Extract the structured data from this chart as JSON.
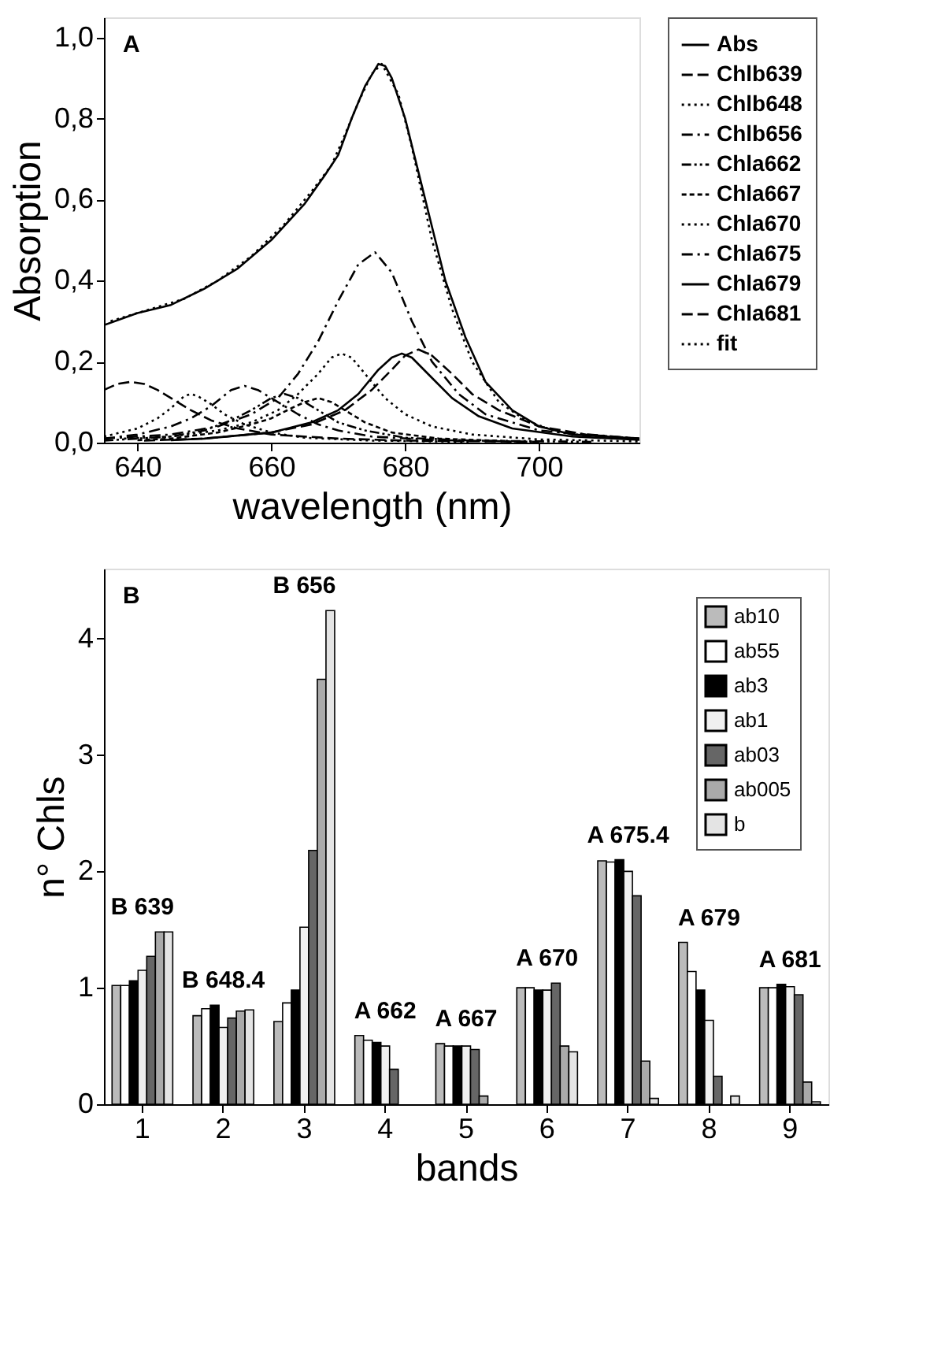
{
  "chart_data": [
    {
      "type": "line",
      "xlabel": "wavelength (nm)",
      "ylabel": "Absorption",
      "annotations": [
        "A"
      ],
      "xlim": [
        635,
        715
      ],
      "xticks": [
        640,
        660,
        680,
        700
      ],
      "ylim": [
        0,
        1.05
      ],
      "yticks": [
        {
          "value": 0,
          "label": "0,0"
        },
        {
          "value": 0.2,
          "label": "0,2"
        },
        {
          "value": 0.4,
          "label": "0,4"
        },
        {
          "value": 0.6,
          "label": "0,6"
        },
        {
          "value": 0.8,
          "label": "0,8"
        },
        {
          "value": 1.0,
          "label": "1,0"
        }
      ],
      "grid": false,
      "legend": "right",
      "marker": "none",
      "series": [
        {
          "name": "Abs",
          "color": "#000000",
          "line_style": "solid",
          "x": [
            635,
            640,
            645,
            650,
            655,
            660,
            665,
            668,
            670,
            672,
            674,
            676,
            677,
            678,
            680,
            683,
            686,
            689,
            692,
            696,
            700,
            705,
            715
          ],
          "values": [
            0.29,
            0.32,
            0.34,
            0.38,
            0.43,
            0.5,
            0.59,
            0.66,
            0.71,
            0.8,
            0.88,
            0.935,
            0.93,
            0.9,
            0.8,
            0.6,
            0.4,
            0.26,
            0.15,
            0.08,
            0.04,
            0.02,
            0.01
          ]
        },
        {
          "name": "Chlb639",
          "color": "#000000",
          "line_style": "dashed",
          "x": [
            635,
            637,
            639,
            641,
            643,
            645,
            648,
            651,
            655,
            660,
            670,
            680,
            700
          ],
          "values": [
            0.13,
            0.145,
            0.15,
            0.145,
            0.13,
            0.11,
            0.08,
            0.055,
            0.035,
            0.02,
            0.01,
            0.005,
            0.002
          ]
        },
        {
          "name": "Chlb648",
          "color": "#000000",
          "line_style": "dotted",
          "x": [
            635,
            640,
            643,
            645,
            647,
            648,
            649,
            651,
            653,
            656,
            660,
            665,
            675,
            690
          ],
          "values": [
            0.015,
            0.035,
            0.06,
            0.085,
            0.115,
            0.12,
            0.115,
            0.095,
            0.07,
            0.045,
            0.025,
            0.012,
            0.005,
            0.002
          ]
        },
        {
          "name": "Chlb656",
          "color": "#000000",
          "line_style": "dashdot",
          "x": [
            635,
            640,
            645,
            648,
            651,
            654,
            656,
            658,
            661,
            664,
            667,
            670,
            675,
            685,
            700
          ],
          "values": [
            0.01,
            0.02,
            0.04,
            0.06,
            0.09,
            0.13,
            0.14,
            0.13,
            0.1,
            0.07,
            0.045,
            0.03,
            0.015,
            0.006,
            0.002
          ]
        },
        {
          "name": "Chla662",
          "color": "#000000",
          "line_style": "dashdotdot",
          "x": [
            635,
            645,
            650,
            654,
            657,
            660,
            662,
            664,
            667,
            670,
            674,
            680,
            690,
            708
          ],
          "values": [
            0.005,
            0.015,
            0.03,
            0.055,
            0.08,
            0.11,
            0.12,
            0.11,
            0.08,
            0.05,
            0.03,
            0.012,
            0.005,
            0.002
          ]
        },
        {
          "name": "Chla667",
          "color": "#000000",
          "line_style": "shortdash",
          "x": [
            640,
            645,
            652,
            657,
            660,
            663,
            665,
            667,
            669,
            671,
            674,
            678,
            685,
            695
          ],
          "values": [
            0.006,
            0.01,
            0.025,
            0.045,
            0.06,
            0.085,
            0.1,
            0.11,
            0.1,
            0.08,
            0.05,
            0.025,
            0.01,
            0.004
          ]
        },
        {
          "name": "Chla670",
          "color": "#000000",
          "line_style": "dotted",
          "x": [
            638,
            645,
            652,
            657,
            661,
            664,
            667,
            669,
            670.5,
            672,
            674,
            677,
            680,
            684,
            690,
            700,
            715
          ],
          "values": [
            0.01,
            0.015,
            0.03,
            0.05,
            0.08,
            0.12,
            0.17,
            0.21,
            0.22,
            0.21,
            0.17,
            0.11,
            0.07,
            0.04,
            0.02,
            0.008,
            0.003
          ]
        },
        {
          "name": "Chla675",
          "color": "#000000",
          "line_style": "dashdot",
          "x": [
            635,
            645,
            652,
            657,
            661,
            664,
            667,
            670,
            673,
            675.5,
            678,
            681,
            684,
            688,
            692,
            700,
            715
          ],
          "values": [
            0.01,
            0.02,
            0.04,
            0.07,
            0.11,
            0.17,
            0.25,
            0.35,
            0.44,
            0.47,
            0.42,
            0.3,
            0.2,
            0.12,
            0.07,
            0.03,
            0.01
          ]
        },
        {
          "name": "Chla679",
          "color": "#000000",
          "line_style": "solid",
          "x": [
            645,
            650,
            660,
            666,
            670,
            673,
            676,
            678,
            679.5,
            681,
            684,
            687,
            691,
            696,
            705,
            715
          ],
          "values": [
            0.006,
            0.01,
            0.025,
            0.05,
            0.08,
            0.12,
            0.18,
            0.21,
            0.22,
            0.21,
            0.16,
            0.11,
            0.065,
            0.035,
            0.015,
            0.007
          ]
        },
        {
          "name": "Chla681",
          "color": "#000000",
          "line_style": "dashed",
          "x": [
            641,
            650,
            660,
            666,
            671,
            675,
            678,
            680,
            682,
            684,
            687,
            690,
            694,
            700,
            707,
            715
          ],
          "values": [
            0.005,
            0.01,
            0.025,
            0.045,
            0.08,
            0.13,
            0.18,
            0.215,
            0.23,
            0.215,
            0.17,
            0.12,
            0.08,
            0.04,
            0.02,
            0.01
          ]
        },
        {
          "name": "fit",
          "color": "#000000",
          "line_style": "dotted",
          "x": [
            636,
            642,
            647,
            652,
            657,
            662,
            666,
            669,
            671,
            673,
            675,
            676.5,
            679,
            681,
            684,
            687,
            690,
            694,
            698,
            703,
            710
          ],
          "values": [
            0.3,
            0.33,
            0.355,
            0.4,
            0.46,
            0.54,
            0.62,
            0.685,
            0.76,
            0.84,
            0.91,
            0.935,
            0.86,
            0.73,
            0.5,
            0.33,
            0.2,
            0.1,
            0.055,
            0.025,
            0.012
          ]
        }
      ]
    },
    {
      "type": "bar",
      "xlabel": "bands",
      "ylabel": "n° Chls",
      "categories": [
        "1",
        "2",
        "3",
        "4",
        "5",
        "6",
        "7",
        "8",
        "9"
      ],
      "ylim": [
        0,
        4.6
      ],
      "yticks": [
        0,
        1,
        2,
        3,
        4
      ],
      "grid": false,
      "legend": "top right",
      "tick_labels": true,
      "annotations": [
        "B",
        "B 639",
        "B 648.4",
        "B 656",
        "A 662",
        "A 667",
        "A 670",
        "A 675.4",
        "A 679",
        "A 681"
      ],
      "series": [
        {
          "name": "ab10",
          "color": "#bbbbbb",
          "values": [
            1.02,
            0.76,
            0.71,
            0.59,
            0.52,
            1.0,
            2.09,
            1.39,
            1.0
          ]
        },
        {
          "name": "ab55",
          "color": "#ffffff",
          "values": [
            1.02,
            0.82,
            0.87,
            0.55,
            0.5,
            1.0,
            2.08,
            1.14,
            1.0
          ]
        },
        {
          "name": "ab3",
          "color": "#000000",
          "values": [
            1.06,
            0.85,
            0.98,
            0.53,
            0.5,
            0.98,
            2.1,
            0.98,
            1.03
          ]
        },
        {
          "name": "ab1",
          "color": "#f0f0f0",
          "values": [
            1.15,
            0.66,
            1.52,
            0.5,
            0.5,
            0.98,
            2.0,
            0.72,
            1.01
          ]
        },
        {
          "name": "ab03",
          "color": "#666666",
          "values": [
            1.27,
            0.74,
            2.18,
            0.3,
            0.47,
            1.04,
            1.79,
            0.24,
            0.94
          ]
        },
        {
          "name": "ab005",
          "color": "#aaaaaa",
          "values": [
            1.48,
            0.8,
            3.65,
            null,
            0.07,
            0.5,
            0.37,
            null,
            0.19
          ]
        },
        {
          "name": "b",
          "color": "#e4e4e4",
          "values": [
            1.48,
            0.81,
            4.24,
            null,
            null,
            0.45,
            0.05,
            0.07,
            0.02
          ]
        }
      ]
    }
  ]
}
